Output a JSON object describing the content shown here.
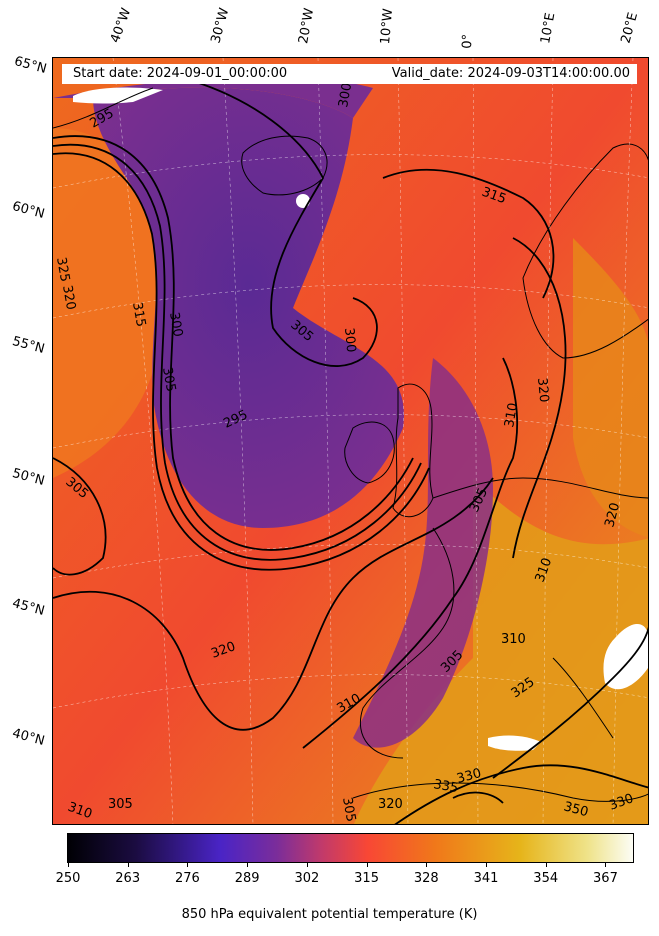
{
  "map": {
    "start_date": "Start date: 2024-09-01_00:00:00",
    "valid_date": "Valid_date: 2024-09-03T14:00:00.00",
    "longitude_labels": [
      "40°W",
      "30°W",
      "20°W",
      "10°W",
      "0°",
      "10°E",
      "20°E"
    ],
    "latitude_labels": [
      "65°N",
      "60°N",
      "55°N",
      "50°N",
      "45°N",
      "40°N"
    ],
    "contour_labels": [
      "295",
      "295",
      "300",
      "300",
      "300",
      "305",
      "305",
      "305",
      "305",
      "305",
      "305",
      "310",
      "310",
      "310",
      "310",
      "315",
      "315",
      "320",
      "320",
      "320",
      "320",
      "325",
      "325",
      "330",
      "330",
      "335",
      "350",
      "320",
      "310",
      "305"
    ],
    "colors": {
      "cold": "#3a1f8a",
      "purple": "#7a2f8f",
      "red": "#f04a32",
      "orange": "#f07a1a",
      "yellow": "#e8b81a"
    }
  },
  "colorbar": {
    "label": "850 hPa equivalent potential temperature (K)",
    "ticks": [
      "250",
      "263",
      "276",
      "289",
      "302",
      "315",
      "328",
      "341",
      "354",
      "367"
    ],
    "range": [
      250,
      373
    ]
  }
}
